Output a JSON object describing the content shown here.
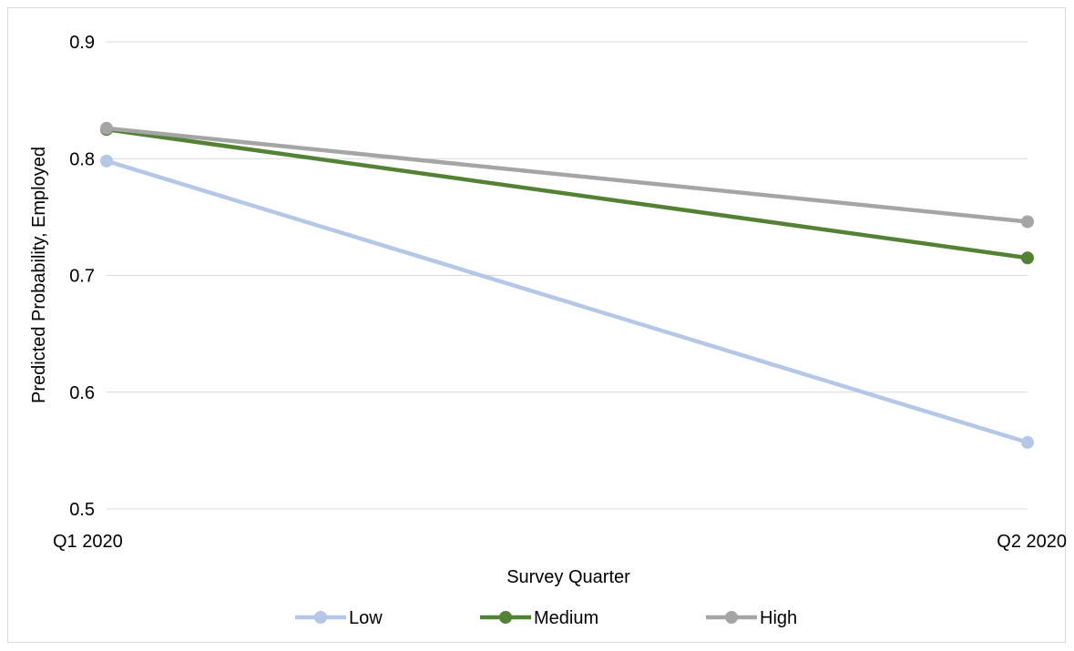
{
  "chart_data": {
    "type": "line",
    "title": "",
    "xlabel": "Survey Quarter",
    "ylabel": "Predicted Probability, Employed",
    "categories": [
      "Q1 2020",
      "Q2 2020"
    ],
    "ylim": [
      0.5,
      0.9
    ],
    "yticks": [
      0.5,
      0.6,
      0.7,
      0.8,
      0.9
    ],
    "ytick_labels": [
      "0.5",
      "0.6",
      "0.7",
      "0.8",
      "0.9"
    ],
    "grid": true,
    "legend_position": "bottom",
    "series": [
      {
        "name": "Low",
        "values": [
          0.798,
          0.557
        ],
        "color": "#b4c7e7"
      },
      {
        "name": "Medium",
        "values": [
          0.825,
          0.715
        ],
        "color": "#548235"
      },
      {
        "name": "High",
        "values": [
          0.826,
          0.746
        ],
        "color": "#a5a5a5"
      }
    ]
  }
}
